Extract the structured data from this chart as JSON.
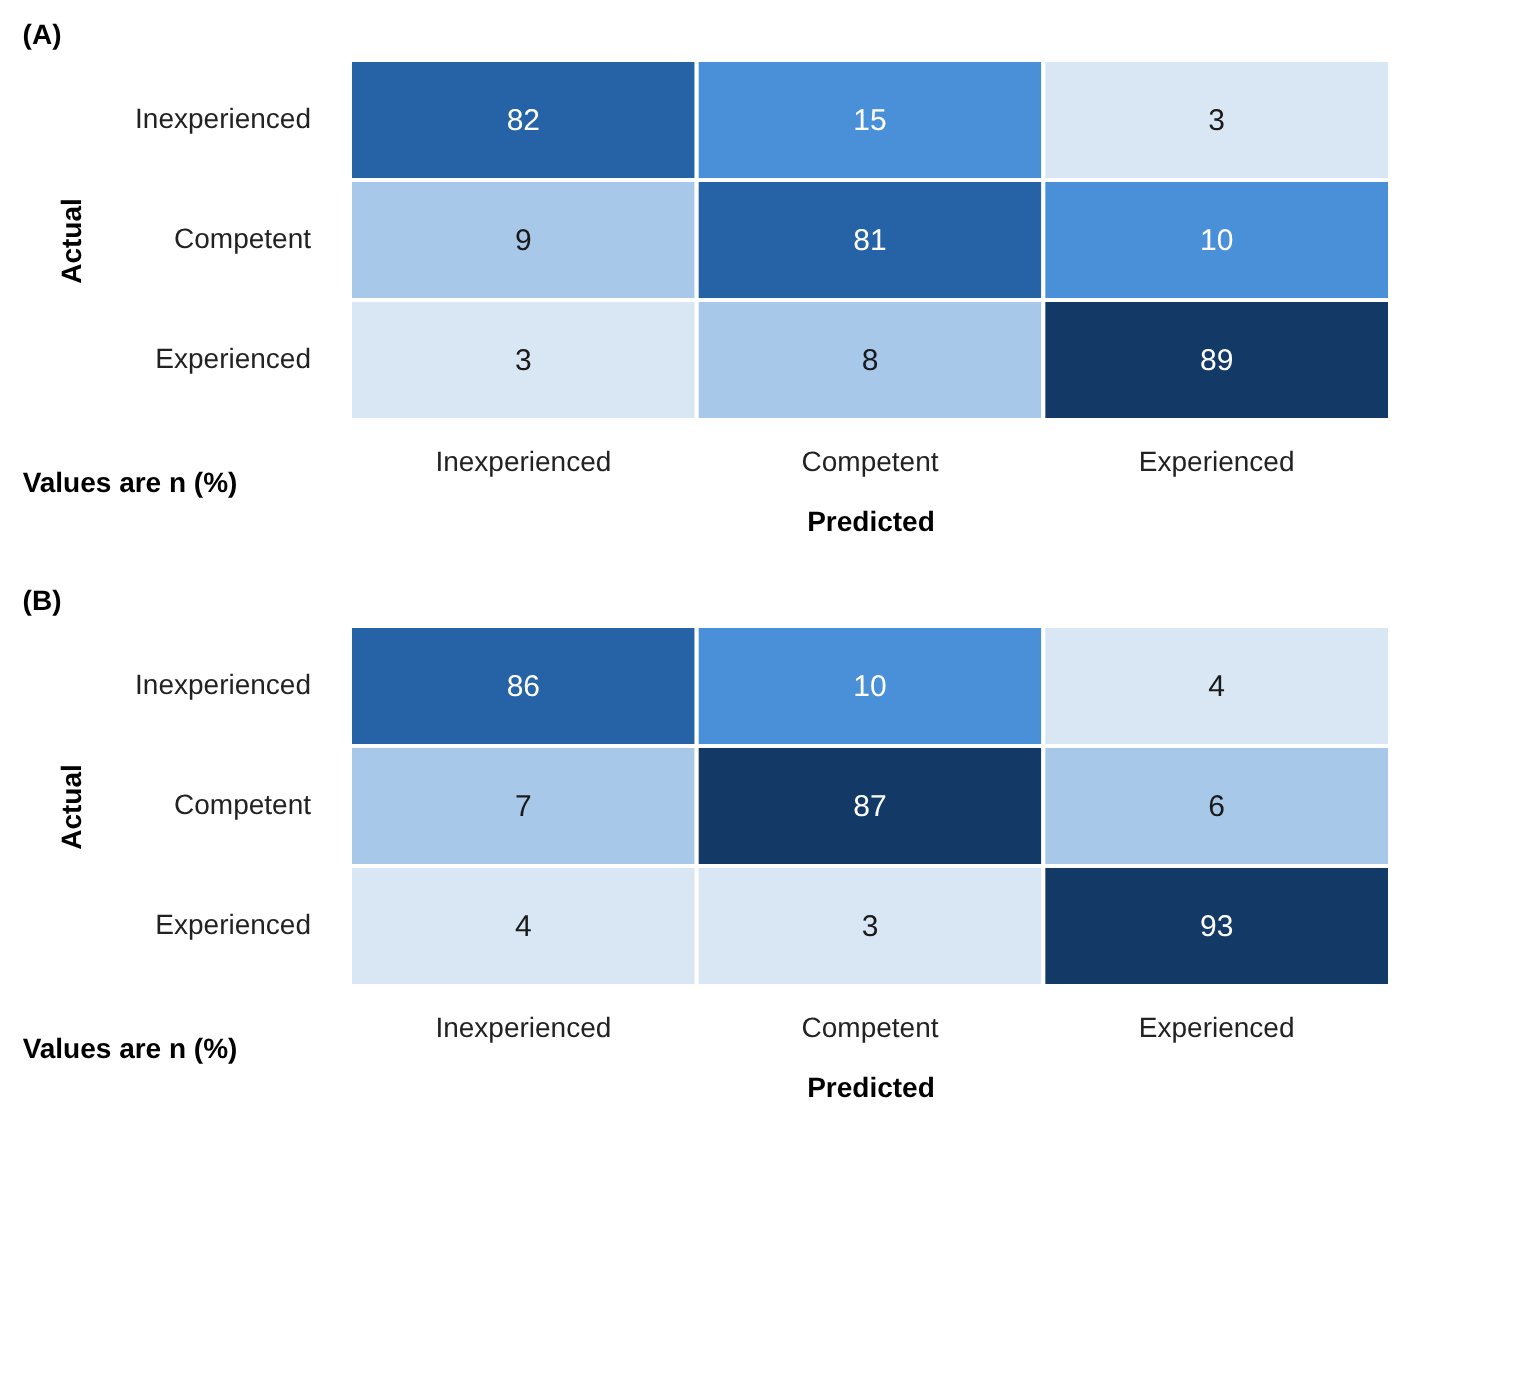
{
  "chart_data": [
    {
      "type": "heatmap",
      "title": "(A)",
      "xlabel": "Predicted",
      "ylabel": "Actual",
      "categories": [
        "Inexperienced",
        "Competent",
        "Experienced"
      ],
      "y_categories": [
        "Inexperienced",
        "Competent",
        "Experienced"
      ],
      "cells": [
        [
          82,
          15,
          3
        ],
        [
          9,
          81,
          10
        ],
        [
          3,
          8,
          89
        ]
      ],
      "data_labels": true,
      "annotations": [
        "Values are n (%)"
      ]
    },
    {
      "type": "heatmap",
      "title": "(B)",
      "xlabel": "Predicted",
      "ylabel": "Actual",
      "categories": [
        "Inexperienced",
        "Competent",
        "Experienced"
      ],
      "y_categories": [
        "Inexperienced",
        "Competent",
        "Experienced"
      ],
      "cells": [
        [
          86,
          10,
          4
        ],
        [
          7,
          87,
          6
        ],
        [
          4,
          3,
          93
        ]
      ],
      "data_labels": true,
      "annotations": [
        "Values are n (%)"
      ]
    }
  ]
}
